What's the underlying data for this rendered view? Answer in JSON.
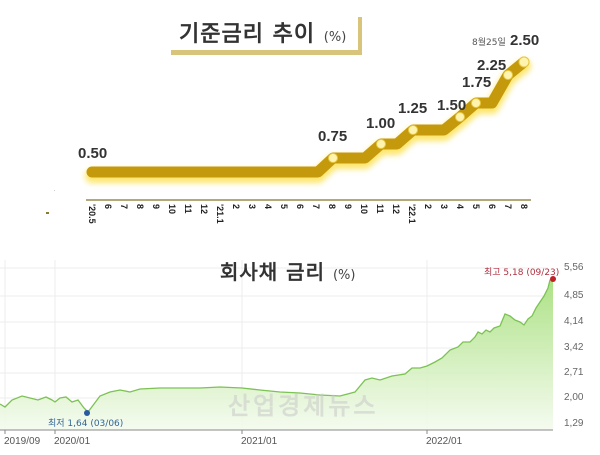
{
  "top_chart": {
    "title": "기준금리 추이",
    "unit": "(%)",
    "date_note": "8월25일",
    "labels": [
      "0.50",
      "0.75",
      "1.00",
      "1.25",
      "1.50",
      "1.75",
      "2.25",
      "2.50"
    ],
    "months": [
      "'20.5",
      "6",
      "7",
      "8",
      "9",
      "10",
      "11",
      "12",
      "'21.1",
      "2",
      "3",
      "4",
      "5",
      "6",
      "7",
      "8",
      "9",
      "10",
      "11",
      "12",
      "'22.1",
      "2",
      "3",
      "4",
      "5",
      "6",
      "7",
      "8"
    ]
  },
  "bottom_chart": {
    "title": "회사채 금리",
    "unit": "(%)",
    "max_annotation": "최고 5,18 (09/23)",
    "min_annotation": "최저 1,64 (03/06)",
    "y_ticks": [
      "5,56",
      "4,85",
      "4,14",
      "3,42",
      "2,71",
      "2,00",
      "1,29"
    ],
    "x_ticks": [
      "2019/09",
      "2020/01",
      "2021/01",
      "2022/01"
    ],
    "watermark": "산업경제뉴스"
  },
  "colors": {
    "policy_line": "#c49a0c",
    "policy_glow": "#ffe04a",
    "marker_fill": "#fff3b0",
    "bond_line": "#7cc254",
    "bond_fill": "#c8eeae",
    "max_marker": "#c0202a",
    "min_marker": "#2a5aa0"
  },
  "chart_data": [
    {
      "type": "line",
      "title": "기준금리 추이 (%)",
      "xlabel": "",
      "ylabel": "%",
      "x": [
        "'20.5",
        "6",
        "7",
        "8",
        "9",
        "10",
        "11",
        "12",
        "'21.1",
        "2",
        "3",
        "4",
        "5",
        "6",
        "7",
        "8",
        "9",
        "10",
        "11",
        "12",
        "'22.1",
        "2",
        "3",
        "4",
        "5",
        "6",
        "7",
        "8"
      ],
      "values": [
        0.5,
        0.5,
        0.5,
        0.5,
        0.5,
        0.5,
        0.5,
        0.5,
        0.5,
        0.5,
        0.5,
        0.5,
        0.5,
        0.5,
        0.5,
        0.75,
        0.75,
        0.75,
        1.0,
        1.0,
        1.25,
        1.25,
        1.25,
        1.5,
        1.75,
        1.75,
        2.25,
        2.5
      ],
      "annotations": [
        "0.50",
        "0.75",
        "1.00",
        "1.25",
        "1.50",
        "1.75",
        "2.25",
        "8월25일 2.50"
      ],
      "grid": false
    },
    {
      "type": "area",
      "title": "회사채 금리 (%)",
      "xlabel": "",
      "ylabel": "%",
      "x": [
        "2019/09",
        "2019/11",
        "2020/01",
        "2020/03",
        "2020/06",
        "2020/09",
        "2021/01",
        "2021/04",
        "2021/07",
        "2021/10",
        "2022/01",
        "2022/03",
        "2022/05",
        "2022/06",
        "2022/08",
        "2022/09"
      ],
      "values": [
        1.85,
        1.95,
        1.85,
        1.64,
        2.15,
        2.25,
        2.22,
        2.15,
        2.55,
        2.85,
        3.3,
        3.8,
        4.45,
        4.15,
        4.6,
        5.18
      ],
      "y_ticks": [
        5.56,
        4.85,
        4.14,
        3.42,
        2.71,
        2.0,
        1.29
      ],
      "ylim": [
        1.29,
        5.56
      ],
      "annotations": [
        "최고 5,18 (09/23)",
        "최저 1,64 (03/06)"
      ],
      "grid": true
    }
  ]
}
